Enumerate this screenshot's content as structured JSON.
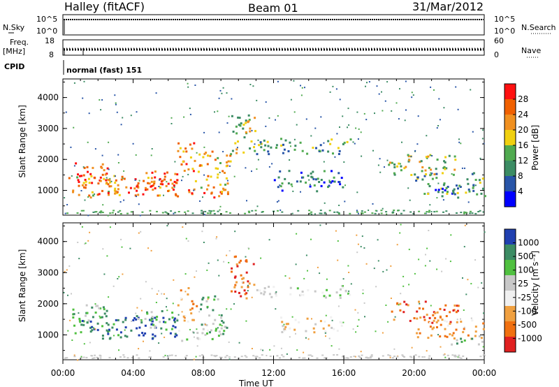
{
  "header": {
    "station": "Halley (fitACF)",
    "beam": "Beam 01",
    "date": "31/Mar/2012"
  },
  "top_panels": {
    "nsky": {
      "label": "N.Sky",
      "ticks": [
        "10^5",
        "10^0"
      ],
      "right_label": "N.Search",
      "right_ticks": [
        "10^5",
        "10^0"
      ]
    },
    "freq": {
      "label_line1": "Freq.",
      "label_line2": "[MHz]",
      "ticks": [
        "18",
        "8"
      ],
      "right_label": "Nave",
      "right_ticks": [
        "60",
        "0"
      ]
    },
    "cpid": {
      "label": "CPID",
      "value": "normal (fast) 151"
    }
  },
  "colors": {
    "power_scale": [
      "#0000ff",
      "#2855a8",
      "#3c8c64",
      "#50aa50",
      "#f0d010",
      "#f09020",
      "#f06000",
      "#ff1010"
    ],
    "velocity_scale": [
      "#2040b0",
      "#3c8c64",
      "#50c040",
      "#c8c8c8",
      "#f0f0f0",
      "#f0a040",
      "#f07010",
      "#e02020"
    ]
  },
  "chart_data": [
    {
      "type": "heatmap",
      "title": "",
      "xlabel": "Time UT",
      "ylabel": "Slant Range [km]",
      "xlim": [
        "00:00",
        "24:00"
      ],
      "ylim": [
        200,
        4600
      ],
      "x_ticks": [
        "00:00",
        "04:00",
        "08:00",
        "12:00",
        "16:00",
        "20:00",
        "00:00"
      ],
      "y_ticks": [
        1000,
        2000,
        3000,
        4000
      ],
      "colorbar": {
        "label": "Power [dB]",
        "ticks": [
          4,
          8,
          12,
          16,
          20,
          24,
          28
        ]
      },
      "regions": [
        {
          "t0": 0.3,
          "t1": 2.5,
          "r0": 1200,
          "r1": 2000,
          "level": 28
        },
        {
          "t0": 0.5,
          "t1": 3.5,
          "r0": 800,
          "r1": 1500,
          "level": 20
        },
        {
          "t0": 2.0,
          "t1": 6.5,
          "r0": 850,
          "r1": 1500,
          "level": 24
        },
        {
          "t0": 4.0,
          "t1": 6.5,
          "r0": 1000,
          "r1": 1700,
          "level": 28
        },
        {
          "t0": 6.5,
          "t1": 7.5,
          "r0": 1400,
          "r1": 2600,
          "level": 24
        },
        {
          "t0": 6.3,
          "t1": 9.0,
          "r0": 800,
          "r1": 1100,
          "level": 28
        },
        {
          "t0": 7.5,
          "t1": 9.5,
          "r0": 900,
          "r1": 2300,
          "level": 20
        },
        {
          "t0": 9.5,
          "t1": 11.0,
          "r0": 2200,
          "r1": 3600,
          "level": 16
        },
        {
          "t0": 11.0,
          "t1": 16.5,
          "r0": 2200,
          "r1": 2700,
          "level": 12
        },
        {
          "t0": 12.0,
          "t1": 16.0,
          "r0": 1000,
          "r1": 1700,
          "level": 8
        },
        {
          "t0": 18.5,
          "t1": 22.5,
          "r0": 1500,
          "r1": 2200,
          "level": 16
        },
        {
          "t0": 20.0,
          "t1": 24.0,
          "r0": 900,
          "r1": 1600,
          "level": 12
        },
        {
          "t0": 21.0,
          "t1": 24.0,
          "r0": 800,
          "r1": 1100,
          "level": 8
        }
      ]
    },
    {
      "type": "heatmap",
      "title": "",
      "xlabel": "Time UT",
      "ylabel": "Slant Range [km]",
      "xlim": [
        "00:00",
        "24:00"
      ],
      "ylim": [
        200,
        4600
      ],
      "x_ticks": [
        "00:00",
        "04:00",
        "08:00",
        "12:00",
        "16:00",
        "20:00",
        "00:00"
      ],
      "y_ticks": [
        1000,
        2000,
        3000,
        4000
      ],
      "colorbar": {
        "label": "Velocity [m s⁻¹]",
        "ticks": [
          1000,
          500,
          100,
          25,
          -25,
          -100,
          -500,
          -1000
        ]
      },
      "regions": [
        {
          "t0": 0.3,
          "t1": 2.5,
          "r0": 1200,
          "r1": 2000,
          "level": 100
        },
        {
          "t0": 0.5,
          "t1": 3.5,
          "r0": 900,
          "r1": 1500,
          "level": 500
        },
        {
          "t0": 2.5,
          "t1": 6.5,
          "r0": 900,
          "r1": 1600,
          "level": 1000
        },
        {
          "t0": 4.0,
          "t1": 6.5,
          "r0": 1200,
          "r1": 1800,
          "level": 100
        },
        {
          "t0": 6.5,
          "t1": 7.6,
          "r0": 1400,
          "r1": 2600,
          "level": -100
        },
        {
          "t0": 6.5,
          "t1": 9.0,
          "r0": 800,
          "r1": 1200,
          "level": 25
        },
        {
          "t0": 7.8,
          "t1": 9.3,
          "r0": 1000,
          "r1": 2300,
          "level": 100
        },
        {
          "t0": 9.5,
          "t1": 11.0,
          "r0": 2200,
          "r1": 3600,
          "level": -500
        },
        {
          "t0": 11.0,
          "t1": 16.5,
          "r0": 2200,
          "r1": 2600,
          "level": 25
        },
        {
          "t0": 12.0,
          "t1": 16.0,
          "r0": 1100,
          "r1": 1600,
          "level": -25
        },
        {
          "t0": 18.5,
          "t1": 22.5,
          "r0": 1400,
          "r1": 2100,
          "level": -500
        },
        {
          "t0": 20.0,
          "t1": 24.0,
          "r0": 900,
          "r1": 1500,
          "level": -100
        },
        {
          "t0": 22.0,
          "t1": 24.0,
          "r0": 700,
          "r1": 1000,
          "level": 100
        }
      ]
    }
  ]
}
